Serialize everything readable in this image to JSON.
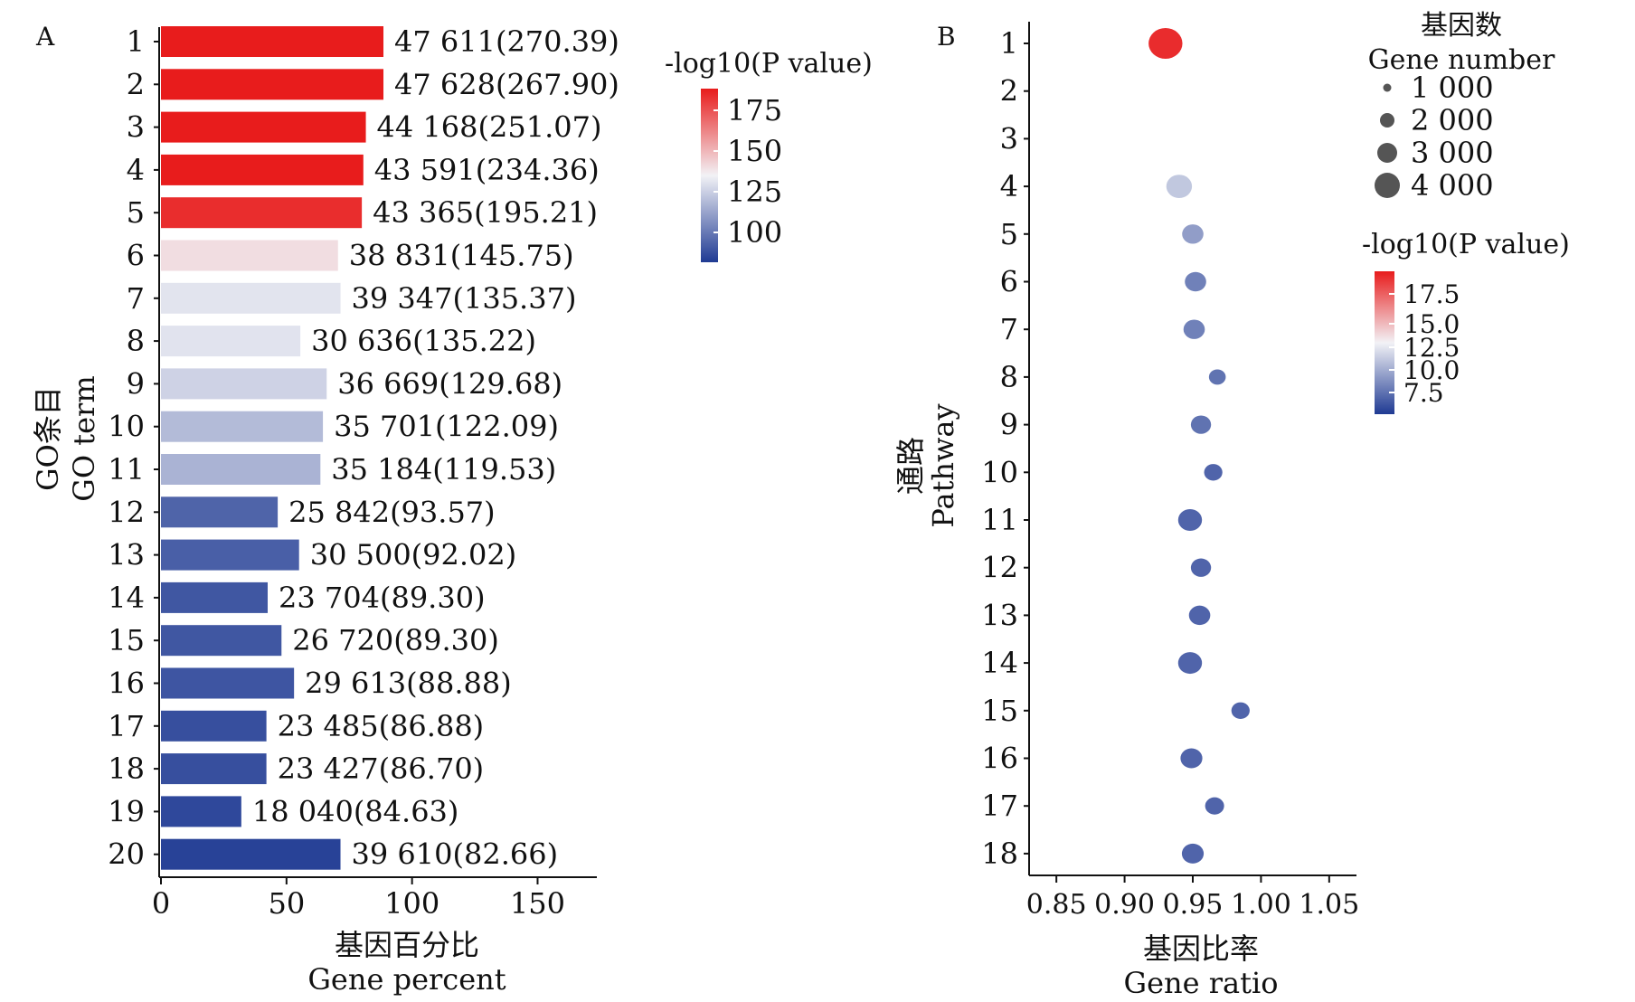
{
  "chart_data": [
    {
      "panel_label": "A",
      "type": "bar",
      "orientation": "horizontal",
      "categories": [
        "1",
        "2",
        "3",
        "4",
        "5",
        "6",
        "7",
        "8",
        "9",
        "10",
        "11",
        "12",
        "13",
        "14",
        "15",
        "16",
        "17",
        "18",
        "19",
        "20"
      ],
      "values": [
        88.6,
        88.6,
        81.6,
        80.6,
        80.0,
        70.5,
        71.5,
        55.5,
        66.0,
        64.5,
        63.5,
        46.5,
        55.0,
        42.5,
        48.0,
        53.0,
        42.0,
        42.0,
        32.0,
        71.5
      ],
      "neg_log10_p": [
        270.39,
        267.9,
        251.07,
        234.36,
        195.21,
        145.75,
        135.37,
        135.22,
        129.68,
        122.09,
        119.53,
        93.57,
        92.02,
        89.3,
        89.3,
        88.88,
        86.88,
        86.7,
        84.63,
        82.66
      ],
      "data_labels": [
        "47 611(270.39)",
        "47 628(267.90)",
        "44 168(251.07)",
        "43 591(234.36)",
        "43 365(195.21)",
        "38 831(145.75)",
        "39 347(135.37)",
        "30 636(135.22)",
        "36 669(129.68)",
        "35 701(122.09)",
        "35 184(119.53)",
        "25 842(93.57)",
        "30 500(92.02)",
        "23 704(89.30)",
        "26 720(89.30)",
        "29 613(88.88)",
        "23 485(86.88)",
        "23 427(86.70)",
        "18 040(84.63)",
        "39 610(82.66)"
      ],
      "xlabel": [
        "基因百分比",
        "Gene percent"
      ],
      "ylabel": [
        "GO条目",
        "GO term"
      ],
      "xlim": [
        0,
        170
      ],
      "xticks": [
        "0",
        "50",
        "100",
        "150"
      ],
      "colorbar": {
        "title": "-log10(P value)",
        "ticks": [
          "175",
          "150",
          "125",
          "100"
        ],
        "low_color": "#1f3a93",
        "mid_color": "#f2f2f6",
        "high_color": "#e81c1c"
      }
    },
    {
      "panel_label": "B",
      "type": "scatter",
      "categories": [
        "1",
        "2",
        "3",
        "4",
        "5",
        "6",
        "7",
        "8",
        "9",
        "10",
        "11",
        "12",
        "13",
        "14",
        "15",
        "16",
        "17",
        "18"
      ],
      "x": [
        0.93,
        null,
        null,
        0.94,
        0.95,
        0.952,
        0.951,
        0.968,
        0.956,
        0.965,
        0.948,
        0.956,
        0.955,
        0.948,
        0.985,
        0.949,
        0.966,
        0.95
      ],
      "neg_log10_p": [
        18.5,
        null,
        null,
        11.0,
        9.5,
        8.5,
        8.5,
        8.0,
        8.0,
        7.5,
        7.5,
        7.5,
        7.5,
        7.5,
        7.5,
        7.5,
        7.5,
        7.5
      ],
      "gene_number": [
        4600,
        null,
        null,
        2300,
        1400,
        1400,
        1400,
        700,
        1200,
        900,
        1900,
        1200,
        1400,
        1900,
        900,
        1500,
        1000,
        1500
      ],
      "xlabel": [
        "基因比率",
        "Gene ratio"
      ],
      "ylabel": [
        "通路",
        "Pathway"
      ],
      "xlim": [
        0.83,
        1.07
      ],
      "xticks": [
        "0.85",
        "0.90",
        "0.95",
        "1.00",
        "1.05"
      ],
      "size_legend": {
        "title": [
          "基因数",
          "Gene number"
        ],
        "entries": [
          "1 000",
          "2 000",
          "3 000",
          "4 000"
        ]
      },
      "colorbar": {
        "title": "-log10(P value)",
        "ticks": [
          "17.5",
          "15.0",
          "12.5",
          "10.0",
          "7.5"
        ],
        "low_color": "#1f3a93",
        "mid_color": "#f2f2f6",
        "high_color": "#e81c1c"
      }
    }
  ]
}
